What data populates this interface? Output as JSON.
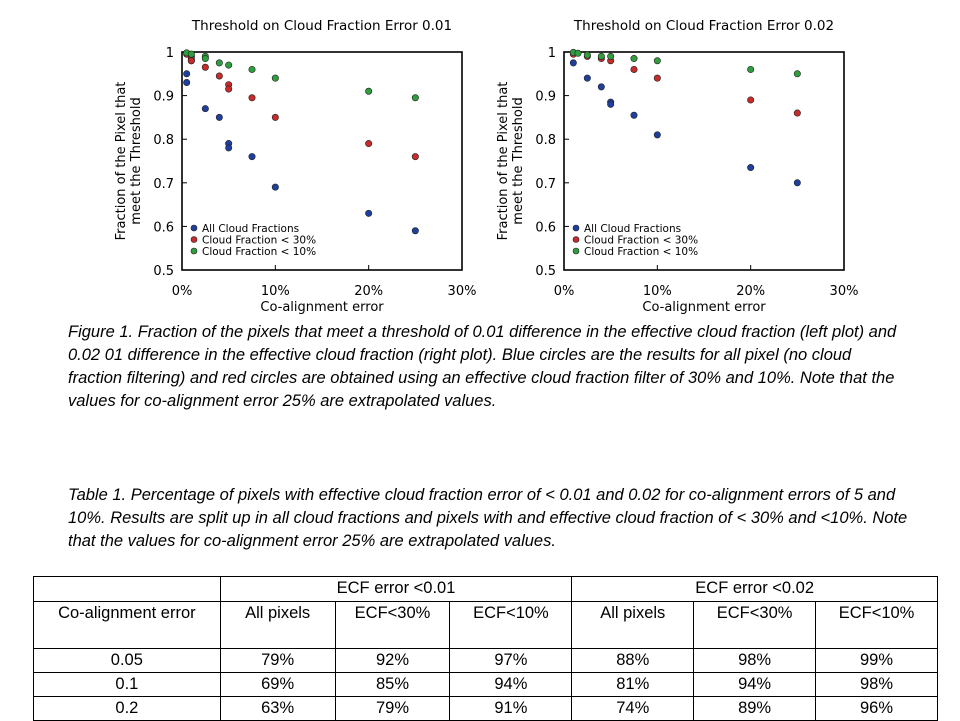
{
  "figure": {
    "caption": "Figure 1. Fraction of the pixels that meet a threshold of 0.01 difference in the effective cloud fraction (left plot) and 0.02 01 difference in the effective cloud fraction (right plot). Blue circles are the results for all pixel (no cloud fraction filtering) and red circles are obtained using an effective cloud fraction filter of 30% and 10%. Note that the values for co-alignment error 25% are extrapolated values."
  },
  "chart_data": [
    {
      "type": "scatter",
      "title": "Threshold on Cloud Fraction Error 0.01",
      "xlabel": "Co-alignment error",
      "ylabel": "Fraction of the Pixel that meet the Threshold",
      "xlim": [
        0,
        30
      ],
      "ylim": [
        0.5,
        1.0
      ],
      "x_ticks": [
        "0%",
        "10%",
        "20%",
        "30%"
      ],
      "y_ticks": [
        "0.5",
        "0.6",
        "0.7",
        "0.8",
        "0.9",
        "1"
      ],
      "grid": false,
      "legend_position": "bottom-left",
      "series": [
        {
          "name": "All Cloud Fractions",
          "color": "#1f3f9f",
          "x": [
            0.5,
            0.5,
            1,
            1,
            2.5,
            4,
            5,
            5,
            7.5,
            10,
            20,
            25
          ],
          "y": [
            0.95,
            0.93,
            0.99,
            0.98,
            0.87,
            0.85,
            0.79,
            0.78,
            0.76,
            0.69,
            0.63,
            0.59
          ]
        },
        {
          "name": "Cloud Fraction < 30%",
          "color": "#c92b2b",
          "x": [
            0.5,
            1,
            1,
            2.5,
            4,
            5,
            5,
            7.5,
            10,
            20,
            25
          ],
          "y": [
            0.995,
            0.985,
            0.98,
            0.965,
            0.945,
            0.925,
            0.915,
            0.895,
            0.85,
            0.79,
            0.76
          ]
        },
        {
          "name": "Cloud Fraction < 10%",
          "color": "#2e9e3e",
          "x": [
            0.5,
            1,
            2.5,
            2.5,
            4,
            5,
            7.5,
            10,
            20,
            25
          ],
          "y": [
            0.998,
            0.995,
            0.99,
            0.985,
            0.975,
            0.97,
            0.96,
            0.94,
            0.91,
            0.895
          ]
        }
      ]
    },
    {
      "type": "scatter",
      "title": "Threshold on Cloud Fraction Error 0.02",
      "xlabel": "Co-alignment error",
      "ylabel": "Fraction of the Pixel that meet the Threshold",
      "xlim": [
        0,
        30
      ],
      "ylim": [
        0.5,
        1.0
      ],
      "x_ticks": [
        "0%",
        "10%",
        "20%",
        "30%"
      ],
      "y_ticks": [
        "0.5",
        "0.6",
        "0.7",
        "0.8",
        "0.9",
        "1"
      ],
      "grid": false,
      "legend_position": "bottom-left",
      "series": [
        {
          "name": "All Cloud Fractions",
          "color": "#1f3f9f",
          "x": [
            1,
            2.5,
            4,
            5,
            5,
            7.5,
            10,
            20,
            25
          ],
          "y": [
            0.975,
            0.94,
            0.92,
            0.885,
            0.88,
            0.855,
            0.81,
            0.735,
            0.7
          ]
        },
        {
          "name": "Cloud Fraction < 30%",
          "color": "#c92b2b",
          "x": [
            1,
            2.5,
            4,
            5,
            7.5,
            10,
            20,
            25
          ],
          "y": [
            0.995,
            0.99,
            0.985,
            0.98,
            0.96,
            0.94,
            0.89,
            0.86
          ]
        },
        {
          "name": "Cloud Fraction < 10%",
          "color": "#2e9e3e",
          "x": [
            1,
            1.5,
            2.5,
            4,
            5,
            7.5,
            10,
            20,
            25
          ],
          "y": [
            0.999,
            0.997,
            0.993,
            0.99,
            0.99,
            0.985,
            0.98,
            0.96,
            0.95
          ]
        }
      ]
    }
  ],
  "table": {
    "caption": "Table 1. Percentage of pixels with effective cloud fraction error of < 0.01 and 0.02 for co-alignment errors of 5 and 10%. Results are split up in all cloud fractions and pixels with and effective cloud fraction of < 30% and <10%. Note that the values for co-alignment error 25% are extrapolated values.",
    "group_headers": [
      "ECF error <0.01",
      "ECF error <0.02"
    ],
    "columns": [
      "Co-alignment error",
      "All pixels",
      "ECF<30%",
      "ECF<10%",
      "All pixels",
      "ECF<30%",
      "ECF<10%"
    ],
    "rows": [
      [
        "0.05",
        "79%",
        "92%",
        "97%",
        "88%",
        "98%",
        "99%"
      ],
      [
        "0.1",
        "69%",
        "85%",
        "94%",
        "81%",
        "94%",
        "98%"
      ],
      [
        "0.2",
        "63%",
        "79%",
        "91%",
        "74%",
        "89%",
        "96%"
      ]
    ]
  }
}
